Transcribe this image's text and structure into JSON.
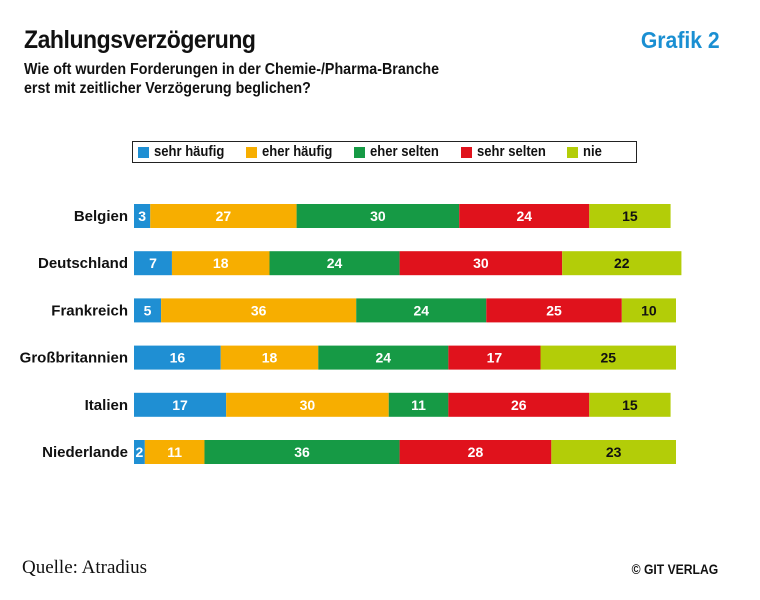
{
  "header": {
    "title": "Zahlungsverzögerung",
    "subtitle_line1": "Wie oft wurden Forderungen in der Chemie-/Pharma-Branche",
    "subtitle_line2": "erst mit zeitlicher Verzögerung beglichen?",
    "figure_label": "Grafik 2",
    "figure_label_color": "#1a8fd2"
  },
  "footer": {
    "source": "Quelle: Atradius",
    "copyright": "© GIT VERLAG"
  },
  "chart_data": {
    "type": "bar",
    "orientation": "horizontal",
    "stacked": true,
    "categories": [
      "Belgien",
      "Deutschland",
      "Frankreich",
      "Großbritannien",
      "Italien",
      "Niederlande"
    ],
    "series": [
      {
        "name": "sehr häufig",
        "color": "#1f8fd3",
        "values": [
          3,
          7,
          5,
          16,
          17,
          2
        ]
      },
      {
        "name": "eher häufig",
        "color": "#f7ae00",
        "values": [
          27,
          18,
          36,
          18,
          30,
          11
        ]
      },
      {
        "name": "eher selten",
        "color": "#169a45",
        "values": [
          30,
          24,
          24,
          24,
          11,
          36
        ]
      },
      {
        "name": "sehr selten",
        "color": "#e0121c",
        "values": [
          24,
          30,
          25,
          17,
          26,
          28
        ]
      },
      {
        "name": "nie",
        "color": "#b3cd08",
        "values": [
          15,
          22,
          10,
          25,
          15,
          23
        ]
      }
    ],
    "legend_position": "top",
    "grid": false,
    "data_labels": true
  }
}
